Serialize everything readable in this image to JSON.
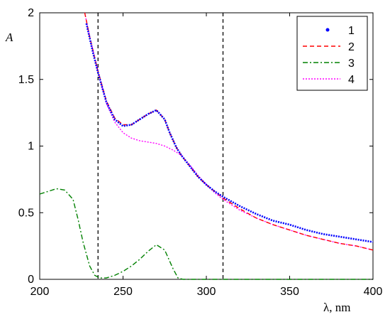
{
  "chart_data": {
    "type": "line",
    "title": "",
    "xlabel": "λ, nm",
    "ylabel": "A",
    "xlim": [
      200,
      400
    ],
    "ylim": [
      0,
      2
    ],
    "x_ticks": [
      200,
      250,
      300,
      350,
      400
    ],
    "x_tick_labels": [
      "200",
      "250",
      "300",
      "350",
      "400"
    ],
    "y_ticks": [
      0,
      0.5,
      1,
      1.5,
      2
    ],
    "y_tick_labels": [
      "0",
      "0.5",
      "1",
      "1.5",
      "2"
    ],
    "grid": false,
    "legend_position": "top-right",
    "vertical_lines": [
      235,
      310
    ],
    "series": [
      {
        "name": "1",
        "style": "dotted-markers",
        "color": "#0000ff",
        "x": [
          228,
          232,
          235,
          240,
          245,
          250,
          255,
          260,
          265,
          270,
          275,
          278,
          282,
          285,
          290,
          295,
          300,
          305,
          310,
          320,
          330,
          340,
          350,
          360,
          370,
          380,
          390,
          400
        ],
        "y": [
          1.92,
          1.7,
          1.55,
          1.33,
          1.2,
          1.15,
          1.16,
          1.2,
          1.24,
          1.27,
          1.2,
          1.1,
          0.99,
          0.93,
          0.85,
          0.77,
          0.71,
          0.66,
          0.62,
          0.55,
          0.49,
          0.44,
          0.41,
          0.37,
          0.34,
          0.32,
          0.3,
          0.28
        ]
      },
      {
        "name": "2",
        "style": "dashed",
        "color": "#ff0000",
        "x": [
          227,
          230,
          235,
          240,
          245,
          250,
          255,
          260,
          265,
          270,
          275,
          278,
          282,
          285,
          290,
          295,
          300,
          305,
          310,
          320,
          330,
          340,
          350,
          360,
          370,
          380,
          390,
          400
        ],
        "y": [
          2.0,
          1.82,
          1.56,
          1.34,
          1.21,
          1.16,
          1.16,
          1.2,
          1.24,
          1.27,
          1.2,
          1.1,
          0.99,
          0.93,
          0.85,
          0.77,
          0.71,
          0.66,
          0.61,
          0.53,
          0.46,
          0.41,
          0.37,
          0.33,
          0.3,
          0.27,
          0.25,
          0.22
        ]
      },
      {
        "name": "3",
        "style": "dash-dot",
        "color": "#008000",
        "x": [
          200,
          205,
          210,
          215,
          220,
          223,
          226,
          230,
          233,
          236,
          240,
          245,
          250,
          255,
          260,
          265,
          270,
          275,
          280,
          283,
          286,
          290,
          300,
          320,
          350,
          380,
          400
        ],
        "y": [
          0.64,
          0.66,
          0.68,
          0.67,
          0.6,
          0.45,
          0.28,
          0.1,
          0.03,
          0.01,
          0.01,
          0.03,
          0.06,
          0.1,
          0.15,
          0.21,
          0.26,
          0.22,
          0.08,
          0.01,
          0.0,
          0.0,
          0.0,
          0.0,
          0.0,
          0.0,
          0.0
        ]
      },
      {
        "name": "4",
        "style": "dotted",
        "color": "#ff00ff",
        "x": [
          227,
          230,
          235,
          240,
          245,
          250,
          255,
          260,
          265,
          270,
          275,
          280,
          285,
          290,
          295,
          300,
          305,
          310,
          320,
          330,
          340,
          350,
          360,
          370,
          380,
          390,
          400
        ],
        "y": [
          2.0,
          1.82,
          1.56,
          1.32,
          1.18,
          1.1,
          1.06,
          1.04,
          1.03,
          1.02,
          1.0,
          0.97,
          0.93,
          0.86,
          0.78,
          0.71,
          0.65,
          0.6,
          0.52,
          0.46,
          0.41,
          0.37,
          0.33,
          0.3,
          0.27,
          0.25,
          0.22
        ]
      }
    ]
  }
}
